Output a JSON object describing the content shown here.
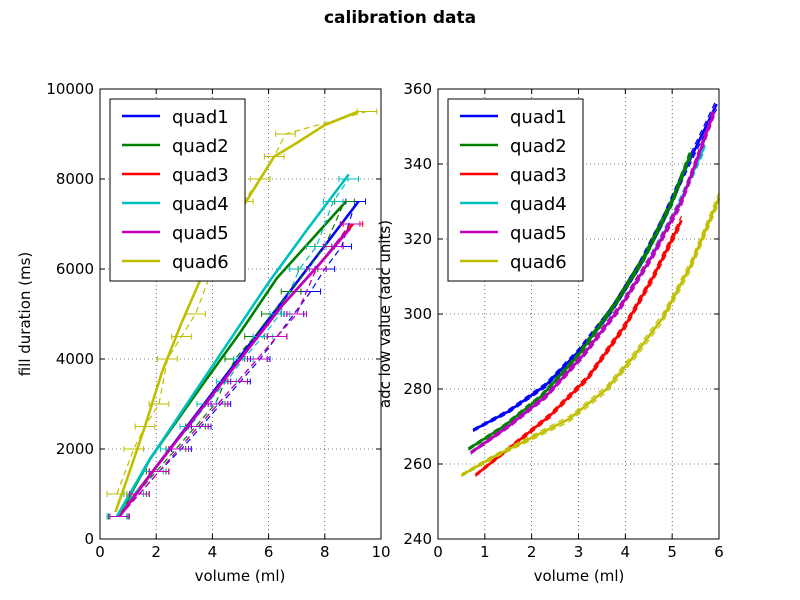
{
  "figure_title": "calibration data",
  "colors": {
    "quad1": "#0000ff",
    "quad2": "#008000",
    "quad3": "#ff0000",
    "quad4": "#00bfbf",
    "quad5": "#bf00bf",
    "quad6": "#bfbf00"
  },
  "chart_data": [
    {
      "type": "line",
      "title": "",
      "xlabel": "volume (ml)",
      "ylabel": "fill duration (ms)",
      "xlim": [
        0,
        10
      ],
      "ylim": [
        0,
        10000
      ],
      "xticks": [
        "0",
        "2",
        "4",
        "6",
        "8",
        "10"
      ],
      "yticks": [
        "0",
        "2000",
        "4000",
        "6000",
        "8000",
        "10000"
      ],
      "grid": true,
      "legend": "top-left",
      "notes": "solid = fit, dashed = measured with horizontal error bars",
      "series": [
        {
          "name": "quad1",
          "color": "#0000ff",
          "x": [
            0.65,
            1.6,
            2.55,
            3.5,
            4.45,
            5.4,
            6.3,
            7.2,
            8.05,
            8.9,
            9.2
          ],
          "y": [
            500,
            1000,
            1500,
            2000,
            2500,
            3000,
            3500,
            4000,
            4500,
            5000,
            7500
          ],
          "fit_x": [
            0.65,
            9.2
          ],
          "fit_y": [
            500,
            7500
          ],
          "meas_x": [
            0.65,
            1.4,
            2.1,
            2.9,
            3.6,
            4.3,
            5.0,
            5.7,
            6.3,
            6.9,
            7.5,
            8.0,
            8.6,
            9.1
          ],
          "meas_y": [
            500,
            1000,
            1500,
            2000,
            2500,
            3000,
            3500,
            4000,
            4500,
            5000,
            5500,
            6000,
            6500,
            7500
          ]
        },
        {
          "name": "quad2",
          "color": "#008000",
          "fit_x": [
            0.65,
            1.8,
            3.5,
            5.0,
            6.3,
            7.6,
            8.75
          ],
          "fit_y": [
            500,
            1800,
            3300,
            4600,
            5800,
            6700,
            7500
          ],
          "meas_x": [
            0.65,
            1.3,
            2.0,
            2.7,
            3.4,
            4.1,
            4.8,
            5.5,
            6.1,
            6.8,
            7.4,
            8.0,
            8.7
          ],
          "meas_y": [
            500,
            1000,
            1500,
            2000,
            2500,
            3000,
            4000,
            4500,
            5000,
            5500,
            6000,
            6500,
            7500
          ]
        },
        {
          "name": "quad3",
          "color": "#ff0000",
          "fit_x": [
            0.65,
            2.0,
            3.5,
            5.0,
            6.5,
            7.8,
            9.0
          ],
          "fit_y": [
            500,
            1600,
            2800,
            4000,
            5200,
            6100,
            7000
          ],
          "meas_x": [
            0.7,
            1.4,
            2.1,
            2.8,
            3.5,
            4.2,
            4.9,
            5.6,
            6.3,
            7.0,
            7.7,
            8.3,
            9.0
          ],
          "meas_y": [
            500,
            1000,
            1500,
            2000,
            2500,
            3000,
            3500,
            4000,
            4500,
            5000,
            6000,
            6500,
            7000
          ]
        },
        {
          "name": "quad4",
          "color": "#00bfbf",
          "fit_x": [
            0.6,
            1.7,
            3.2,
            4.6,
            6.0,
            7.4,
            8.85
          ],
          "fit_y": [
            500,
            1700,
            3100,
            4400,
            5700,
            6900,
            8100
          ],
          "meas_x": [
            0.6,
            1.2,
            1.9,
            2.5,
            3.2,
            3.8,
            4.5,
            5.1,
            5.8,
            6.4,
            7.1,
            7.7,
            8.3,
            8.85
          ],
          "meas_y": [
            500,
            1000,
            1500,
            2000,
            2500,
            3000,
            3500,
            4000,
            4500,
            5000,
            6000,
            6500,
            7500,
            8000
          ]
        },
        {
          "name": "quad5",
          "color": "#bf00bf",
          "fit_x": [
            0.7,
            2.0,
            3.5,
            5.0,
            6.5,
            7.8,
            8.9
          ],
          "fit_y": [
            500,
            1600,
            2800,
            4000,
            5200,
            6100,
            6900
          ],
          "meas_x": [
            0.7,
            1.4,
            2.1,
            2.8,
            3.5,
            4.2,
            4.9,
            5.6,
            6.3,
            7.0,
            7.7,
            8.3,
            8.9
          ],
          "meas_y": [
            500,
            1000,
            1500,
            2000,
            2500,
            3000,
            3500,
            4000,
            4500,
            5000,
            6000,
            6500,
            7000
          ]
        },
        {
          "name": "quad6",
          "color": "#bfbf00",
          "fit_x": [
            0.55,
            1.0,
            1.6,
            2.2,
            2.9,
            3.6,
            4.3,
            5.0,
            5.6,
            6.2,
            7.0,
            8.0,
            9.2
          ],
          "fit_y": [
            600,
            1400,
            2500,
            3700,
            4800,
            5800,
            6600,
            7300,
            7900,
            8500,
            8800,
            9200,
            9500
          ],
          "meas_x": [
            0.6,
            1.2,
            1.6,
            2.1,
            2.4,
            2.9,
            3.4,
            4.0,
            4.5,
            5.1,
            5.7,
            6.2,
            6.6,
            9.5
          ],
          "meas_y": [
            1000,
            2000,
            2500,
            3000,
            4000,
            4500,
            5000,
            6000,
            6500,
            7500,
            8000,
            8500,
            9000,
            9500
          ]
        }
      ]
    },
    {
      "type": "line",
      "title": "",
      "xlabel": "volume (ml)",
      "ylabel": "adc low value (adc units)",
      "xlim": [
        0,
        6
      ],
      "ylim": [
        240,
        360
      ],
      "xticks": [
        "0",
        "1",
        "2",
        "3",
        "4",
        "5",
        "6"
      ],
      "yticks": [
        "240",
        "260",
        "280",
        "300",
        "320",
        "340",
        "360"
      ],
      "grid": true,
      "legend": "top-left",
      "series": [
        {
          "name": "quad1",
          "color": "#0000ff",
          "fit_x": [
            0.75,
            1.5,
            2.3,
            3.0,
            3.7,
            4.3,
            4.8,
            5.3,
            5.95
          ],
          "fit_y": [
            269,
            274,
            281,
            290,
            301,
            313,
            325,
            339,
            356
          ]
        },
        {
          "name": "quad2",
          "color": "#008000",
          "fit_x": [
            0.65,
            1.4,
            2.2,
            3.0,
            3.8,
            4.4,
            5.0,
            5.4
          ],
          "fit_y": [
            264,
            270,
            278,
            289,
            303,
            315,
            330,
            343
          ]
        },
        {
          "name": "quad3",
          "color": "#ff0000",
          "fit_x": [
            0.8,
            1.6,
            2.4,
            3.2,
            4.0,
            4.6,
            5.2
          ],
          "fit_y": [
            257,
            265,
            273,
            283,
            297,
            310,
            325
          ]
        },
        {
          "name": "quad4",
          "color": "#00bfbf",
          "fit_x": [
            0.7,
            1.5,
            2.3,
            3.1,
            3.9,
            4.5,
            5.1,
            5.7
          ],
          "fit_y": [
            263,
            270,
            278,
            289,
            302,
            314,
            328,
            345
          ]
        },
        {
          "name": "quad5",
          "color": "#bf00bf",
          "fit_x": [
            0.7,
            1.5,
            2.3,
            3.1,
            3.9,
            4.6,
            5.2,
            5.9
          ],
          "fit_y": [
            263,
            270,
            278,
            289,
            302,
            316,
            330,
            354
          ]
        },
        {
          "name": "quad6",
          "color": "#bfbf00",
          "fit_x": [
            0.5,
            1.2,
            2.0,
            2.8,
            3.6,
            4.2,
            4.8,
            5.4,
            6.0
          ],
          "fit_y": [
            257,
            262,
            267,
            272,
            280,
            289,
            299,
            313,
            331
          ]
        }
      ]
    }
  ]
}
